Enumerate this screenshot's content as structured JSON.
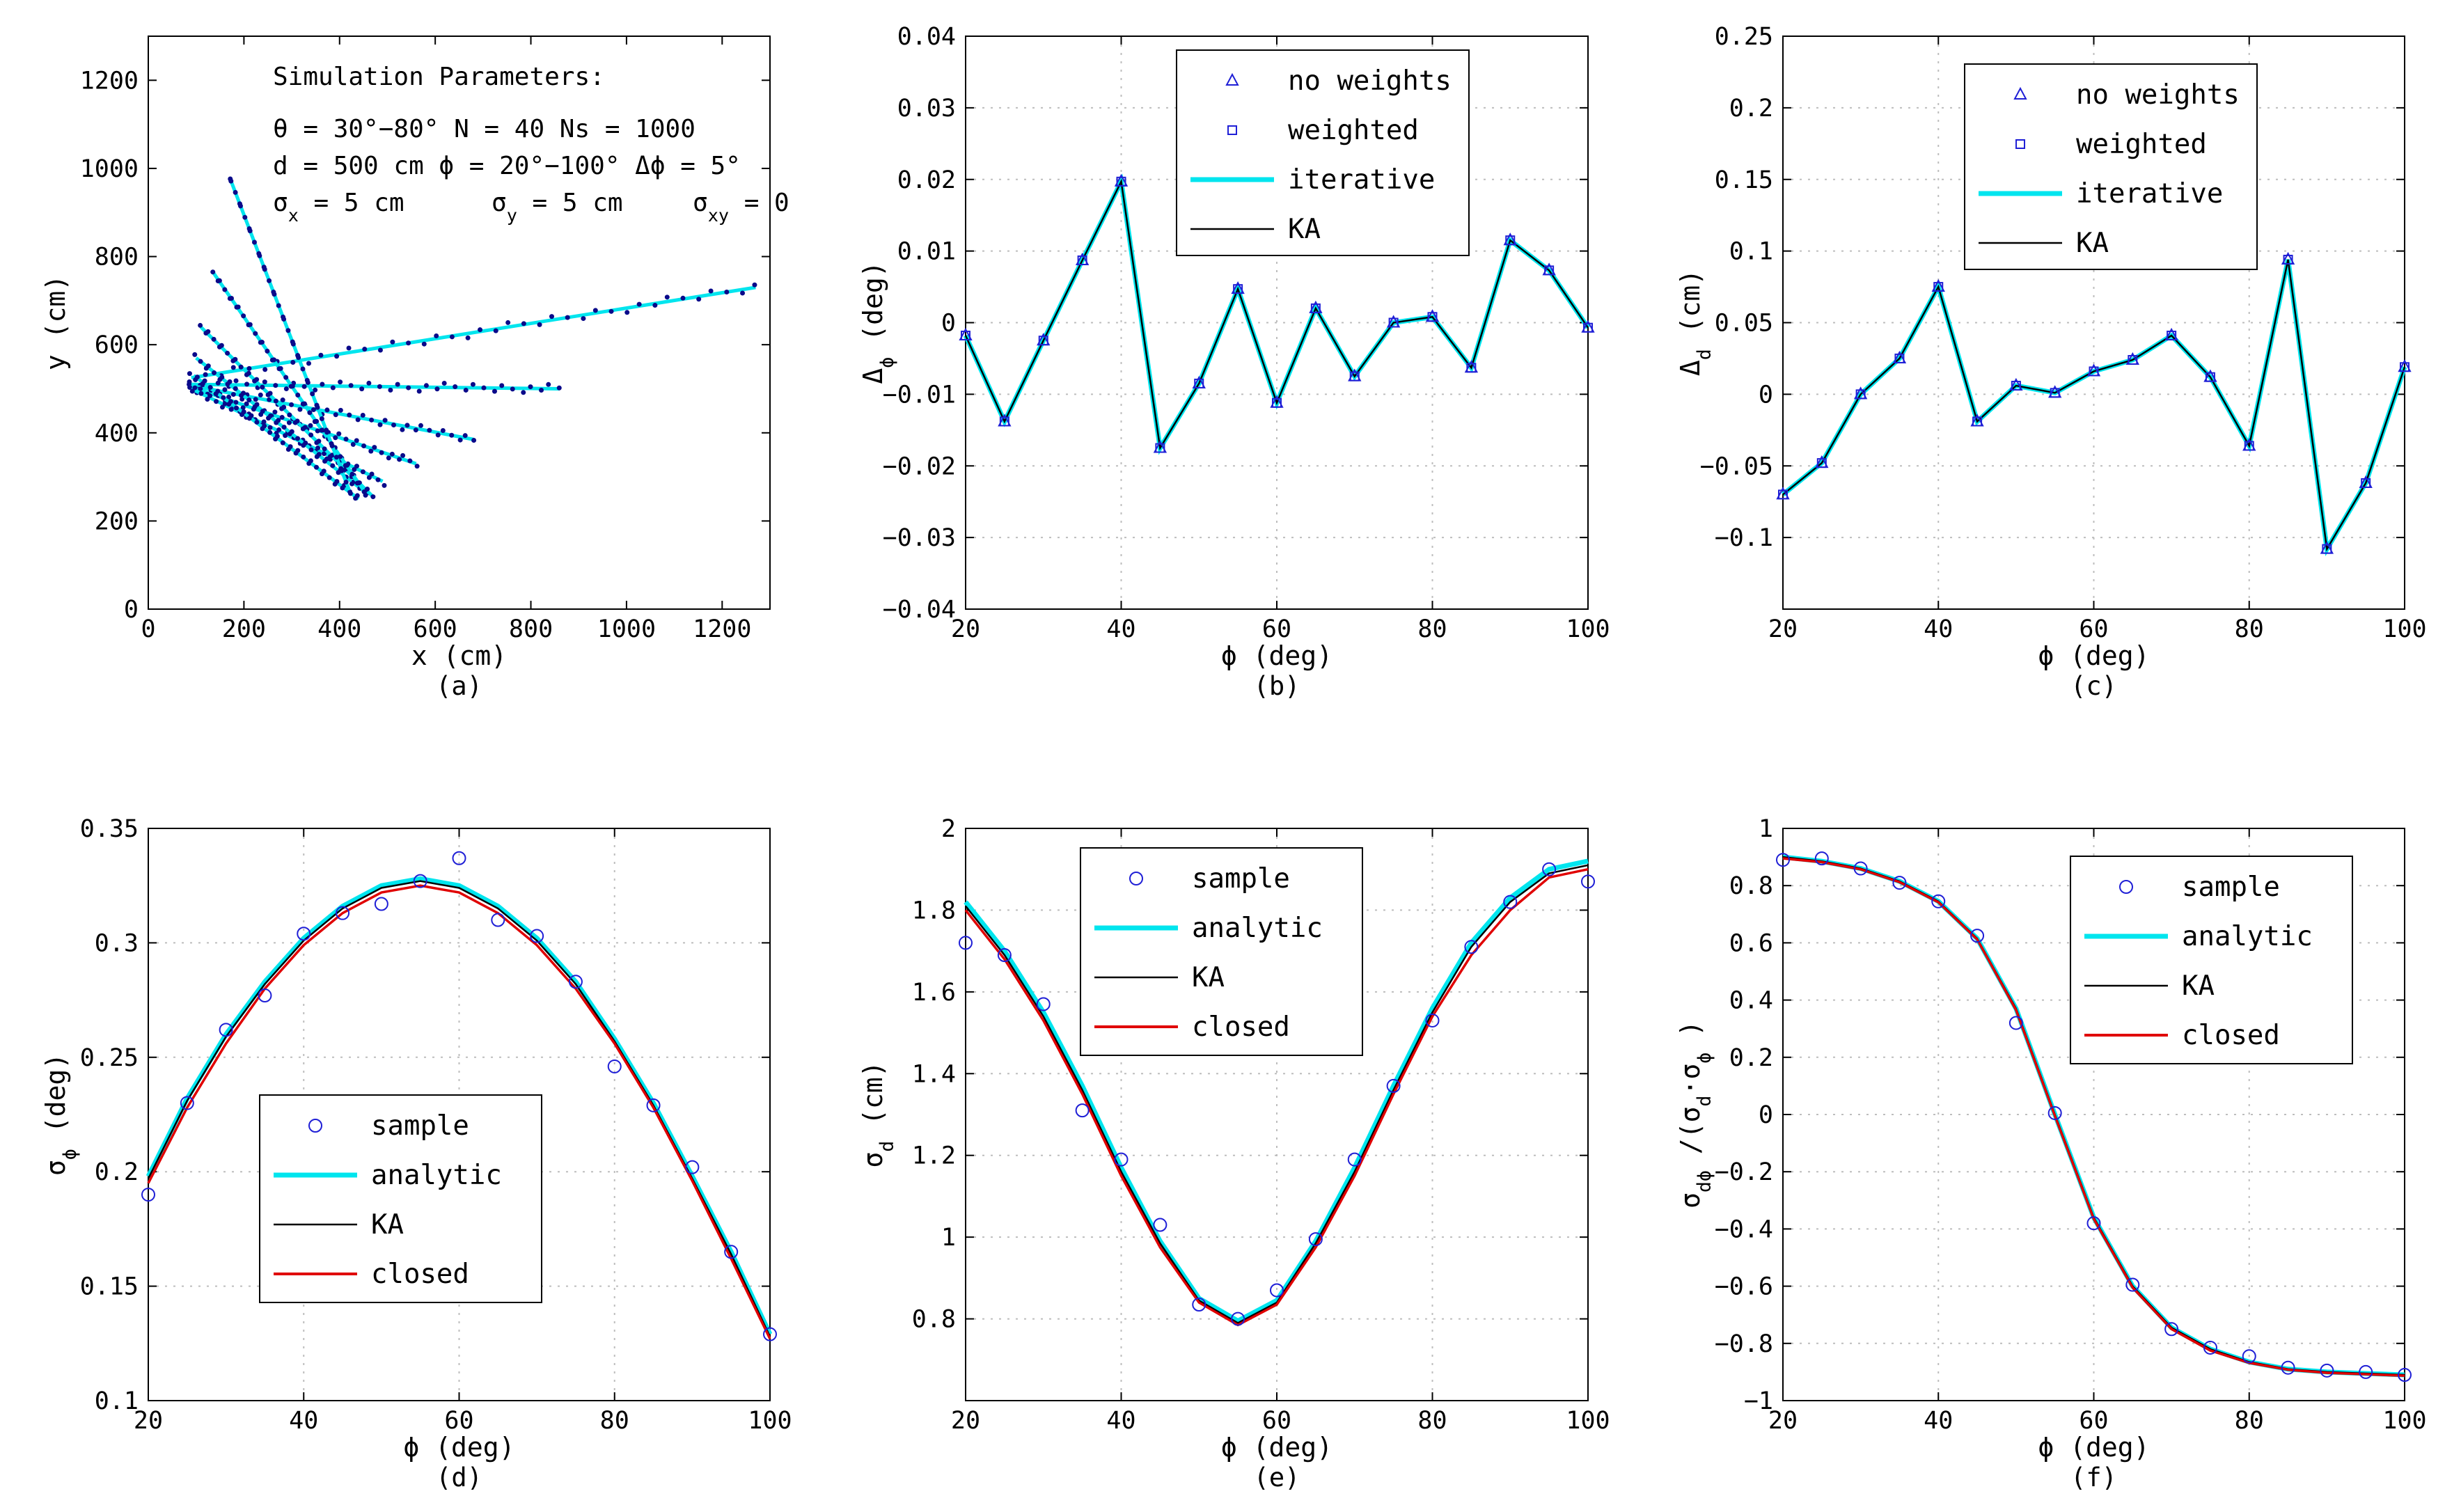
{
  "figure": {
    "chart_data": [
      {
        "id": "a",
        "type": "scatter",
        "caption": "(a)",
        "xlabel": "x (cm)",
        "ylabel": "y (cm)",
        "xlim": [
          0,
          1300
        ],
        "ylim": [
          0,
          1300
        ],
        "xticks": [
          0,
          200,
          400,
          600,
          800,
          1000,
          1200
        ],
        "yticks": [
          0,
          200,
          400,
          600,
          800,
          1000,
          1200
        ],
        "grid": false,
        "annotation": {
          "title": "Simulation Parameters:",
          "line1": "θ = 30°−80°    N = 40   Ns = 1000",
          "line2": "d = 500 cm   ϕ = 20°−100°  Δϕ = 5°",
          "sx": "σ",
          "sx_sub": "x",
          "sx_val": " = 5 cm",
          "sy": "σ",
          "sy_sub": "y",
          "sy_val": " = 5 cm",
          "sxy": "σ",
          "sxy_sub": "xy",
          "sxy_val": " = 0"
        },
        "tracks": [
          {
            "x0": 90,
            "y0": 525,
            "x1": 1270,
            "y1": 730
          },
          {
            "x0": 88,
            "y0": 510,
            "x1": 860,
            "y1": 500
          },
          {
            "x0": 86,
            "y0": 508,
            "x1": 680,
            "y1": 385
          },
          {
            "x0": 86,
            "y0": 505,
            "x1": 560,
            "y1": 330
          },
          {
            "x0": 90,
            "y0": 500,
            "x1": 490,
            "y1": 290
          },
          {
            "x0": 95,
            "y0": 530,
            "x1": 440,
            "y1": 250
          },
          {
            "x0": 100,
            "y0": 570,
            "x1": 460,
            "y1": 260
          },
          {
            "x0": 110,
            "y0": 640,
            "x1": 470,
            "y1": 255
          },
          {
            "x0": 135,
            "y0": 765,
            "x1": 450,
            "y1": 270
          },
          {
            "x0": 170,
            "y0": 980,
            "x1": 420,
            "y1": 270
          }
        ]
      },
      {
        "id": "b",
        "type": "line",
        "caption": "(b)",
        "xlabel": "ϕ (deg)",
        "ylabel": "Δ",
        "ylabel_sub": "ϕ",
        "ylabel_tail": " (deg)",
        "xlim": [
          20,
          100
        ],
        "ylim": [
          -0.04,
          0.04
        ],
        "xticks": [
          20,
          40,
          60,
          80,
          100
        ],
        "yticks": [
          -0.04,
          -0.03,
          -0.02,
          -0.01,
          0,
          0.01,
          0.02,
          0.03,
          0.04
        ],
        "ytick_labels": [
          "−0.04",
          "−0.03",
          "−0.02",
          "−0.01",
          "0",
          "0.01",
          "0.02",
          "0.03",
          "0.04"
        ],
        "grid": true,
        "legend_position": "top",
        "legend": [
          "no weights",
          "weighted",
          "iterative",
          "KA"
        ],
        "x": [
          20,
          25,
          30,
          35,
          40,
          45,
          50,
          55,
          60,
          65,
          70,
          75,
          80,
          85,
          90,
          95,
          100
        ],
        "values": [
          -0.0018,
          -0.0138,
          -0.0025,
          0.0087,
          0.0197,
          -0.0175,
          -0.0085,
          0.0047,
          -0.0112,
          0.002,
          -0.0075,
          0,
          0.0008,
          -0.0063,
          0.0115,
          0.0073,
          -0.0007
        ]
      },
      {
        "id": "c",
        "type": "line",
        "caption": "(c)",
        "xlabel": "ϕ (deg)",
        "ylabel": "Δ",
        "ylabel_sub": "d",
        "ylabel_tail": " (cm)",
        "xlim": [
          20,
          100
        ],
        "ylim": [
          -0.15,
          0.25
        ],
        "xticks": [
          20,
          40,
          60,
          80,
          100
        ],
        "yticks": [
          -0.1,
          -0.05,
          0,
          0.05,
          0.1,
          0.15,
          0.2,
          0.25
        ],
        "ytick_labels": [
          "−0.1",
          "−0.05",
          "0",
          "0.05",
          "0.1",
          "0.15",
          "0.2",
          "0.25"
        ],
        "grid": true,
        "legend_position": "top-right",
        "legend": [
          "no weights",
          "weighted",
          "iterative",
          "KA"
        ],
        "x": [
          20,
          25,
          30,
          35,
          40,
          45,
          50,
          55,
          60,
          65,
          70,
          75,
          80,
          85,
          90,
          95,
          100
        ],
        "values": [
          -0.07,
          -0.048,
          0,
          0.025,
          0.075,
          -0.019,
          0.006,
          0.001,
          0.016,
          0.024,
          0.041,
          0.012,
          -0.036,
          0.094,
          -0.108,
          -0.062,
          0.019
        ]
      },
      {
        "id": "d",
        "type": "line",
        "caption": "(d)",
        "xlabel": "ϕ (deg)",
        "ylabel": "σ",
        "ylabel_sub": "ϕ",
        "ylabel_tail": " (deg)",
        "xlim": [
          20,
          100
        ],
        "ylim": [
          0.1,
          0.35
        ],
        "xticks": [
          20,
          40,
          60,
          80,
          100
        ],
        "yticks": [
          0.1,
          0.15,
          0.2,
          0.25,
          0.3,
          0.35
        ],
        "ytick_labels": [
          "0.1",
          "0.15",
          "0.2",
          "0.25",
          "0.3",
          "0.35"
        ],
        "grid": true,
        "legend_position": "bottom-center",
        "legend": [
          "sample",
          "analytic",
          "KA",
          "closed"
        ],
        "x": [
          20,
          25,
          30,
          35,
          40,
          45,
          50,
          55,
          60,
          65,
          70,
          75,
          80,
          85,
          90,
          95,
          100
        ],
        "series": [
          {
            "name": "sample",
            "values": [
              0.19,
              0.23,
              0.262,
              0.277,
              0.304,
              0.313,
              0.317,
              0.327,
              0.337,
              0.31,
              0.303,
              0.283,
              0.246,
              0.229,
              0.202,
              0.165,
              0.129
            ]
          },
          {
            "name": "analytic",
            "values": [
              0.198,
              0.232,
              0.26,
              0.283,
              0.302,
              0.316,
              0.325,
              0.328,
              0.325,
              0.316,
              0.302,
              0.283,
              0.258,
              0.23,
              0.198,
              0.165,
              0.129
            ]
          },
          {
            "name": "KA",
            "values": [
              0.197,
              0.231,
              0.259,
              0.282,
              0.301,
              0.315,
              0.324,
              0.327,
              0.324,
              0.315,
              0.301,
              0.282,
              0.257,
              0.229,
              0.197,
              0.164,
              0.128
            ]
          },
          {
            "name": "closed",
            "values": [
              0.195,
              0.228,
              0.256,
              0.28,
              0.299,
              0.313,
              0.322,
              0.325,
              0.322,
              0.313,
              0.299,
              0.28,
              0.256,
              0.228,
              0.196,
              0.162,
              0.127
            ]
          }
        ]
      },
      {
        "id": "e",
        "type": "line",
        "caption": "(e)",
        "xlabel": "ϕ (deg)",
        "ylabel": "σ",
        "ylabel_sub": "d",
        "ylabel_tail": " (cm)",
        "xlim": [
          20,
          100
        ],
        "ylim": [
          0.6,
          2
        ],
        "xticks": [
          20,
          40,
          60,
          80,
          100
        ],
        "yticks": [
          0.8,
          1,
          1.2,
          1.4,
          1.6,
          1.8,
          2
        ],
        "ytick_labels": [
          "0.8",
          "1",
          "1.2",
          "1.4",
          "1.6",
          "1.8",
          "2"
        ],
        "grid": true,
        "legend_position": "top-center",
        "legend": [
          "sample",
          "analytic",
          "KA",
          "closed"
        ],
        "x": [
          20,
          25,
          30,
          35,
          40,
          45,
          50,
          55,
          60,
          65,
          70,
          75,
          80,
          85,
          90,
          95,
          100
        ],
        "series": [
          {
            "name": "sample",
            "values": [
              1.72,
              1.69,
              1.57,
              1.31,
              1.19,
              1.03,
              0.835,
              0.8,
              0.87,
              0.995,
              1.19,
              1.37,
              1.53,
              1.71,
              1.82,
              1.9,
              1.87
            ]
          },
          {
            "name": "analytic",
            "values": [
              1.82,
              1.7,
              1.55,
              1.37,
              1.17,
              0.99,
              0.85,
              0.795,
              0.845,
              0.99,
              1.17,
              1.37,
              1.56,
              1.72,
              1.83,
              1.9,
              1.92
            ]
          },
          {
            "name": "KA",
            "values": [
              1.81,
              1.69,
              1.54,
              1.36,
              1.16,
              0.985,
              0.845,
              0.79,
              0.84,
              0.985,
              1.16,
              1.36,
              1.55,
              1.71,
              1.82,
              1.89,
              1.91
            ]
          },
          {
            "name": "closed",
            "values": [
              1.8,
              1.68,
              1.53,
              1.35,
              1.15,
              0.975,
              0.84,
              0.785,
              0.835,
              0.975,
              1.15,
              1.35,
              1.54,
              1.69,
              1.8,
              1.88,
              1.9
            ]
          }
        ]
      },
      {
        "id": "f",
        "type": "line",
        "caption": "(f)",
        "xlabel": "ϕ (deg)",
        "ylabel": "σ",
        "ylabel_sub": "dϕ",
        "ylabel_tail": " /(σ",
        "ylabel_sub2": "d",
        "ylabel_mid": "·σ",
        "ylabel_sub3": "ϕ",
        "ylabel_end": " )",
        "xlim": [
          20,
          100
        ],
        "ylim": [
          -1,
          1
        ],
        "xticks": [
          20,
          40,
          60,
          80,
          100
        ],
        "yticks": [
          -1,
          -0.8,
          -0.6,
          -0.4,
          -0.2,
          0,
          0.2,
          0.4,
          0.6,
          0.8,
          1
        ],
        "ytick_labels": [
          "−1",
          "−0.8",
          "−0.6",
          "−0.4",
          "−0.2",
          "0",
          "0.2",
          "0.4",
          "0.6",
          "0.8",
          "1"
        ],
        "grid": true,
        "legend_position": "top-right",
        "legend": [
          "sample",
          "analytic",
          "KA",
          "closed"
        ],
        "x": [
          20,
          25,
          30,
          35,
          40,
          45,
          50,
          55,
          60,
          65,
          70,
          75,
          80,
          85,
          90,
          95,
          100
        ],
        "series": [
          {
            "name": "sample",
            "values": [
              0.89,
              0.895,
              0.86,
              0.81,
              0.745,
              0.625,
              0.32,
              0.005,
              -0.38,
              -0.595,
              -0.75,
              -0.815,
              -0.845,
              -0.885,
              -0.895,
              -0.9,
              -0.91
            ]
          },
          {
            "name": "analytic",
            "values": [
              0.9,
              0.885,
              0.86,
              0.815,
              0.745,
              0.615,
              0.37,
              0.0,
              -0.36,
              -0.6,
              -0.745,
              -0.82,
              -0.865,
              -0.89,
              -0.9,
              -0.905,
              -0.91
            ]
          },
          {
            "name": "KA",
            "values": [
              0.9,
              0.885,
              0.86,
              0.815,
              0.745,
              0.615,
              0.37,
              0.0,
              -0.36,
              -0.6,
              -0.745,
              -0.82,
              -0.865,
              -0.89,
              -0.9,
              -0.905,
              -0.91
            ]
          },
          {
            "name": "closed",
            "values": [
              0.895,
              0.882,
              0.857,
              0.812,
              0.742,
              0.612,
              0.365,
              -0.005,
              -0.365,
              -0.605,
              -0.75,
              -0.825,
              -0.868,
              -0.892,
              -0.903,
              -0.908,
              -0.913
            ]
          }
        ]
      }
    ]
  },
  "colors": {
    "marker": "#1f1fd6",
    "cyan": "#00e5ee",
    "black": "#000000",
    "red": "#e00000",
    "teal": "#007a7a",
    "grid": "#bdbdbd",
    "dots": "#0a0a8a"
  }
}
